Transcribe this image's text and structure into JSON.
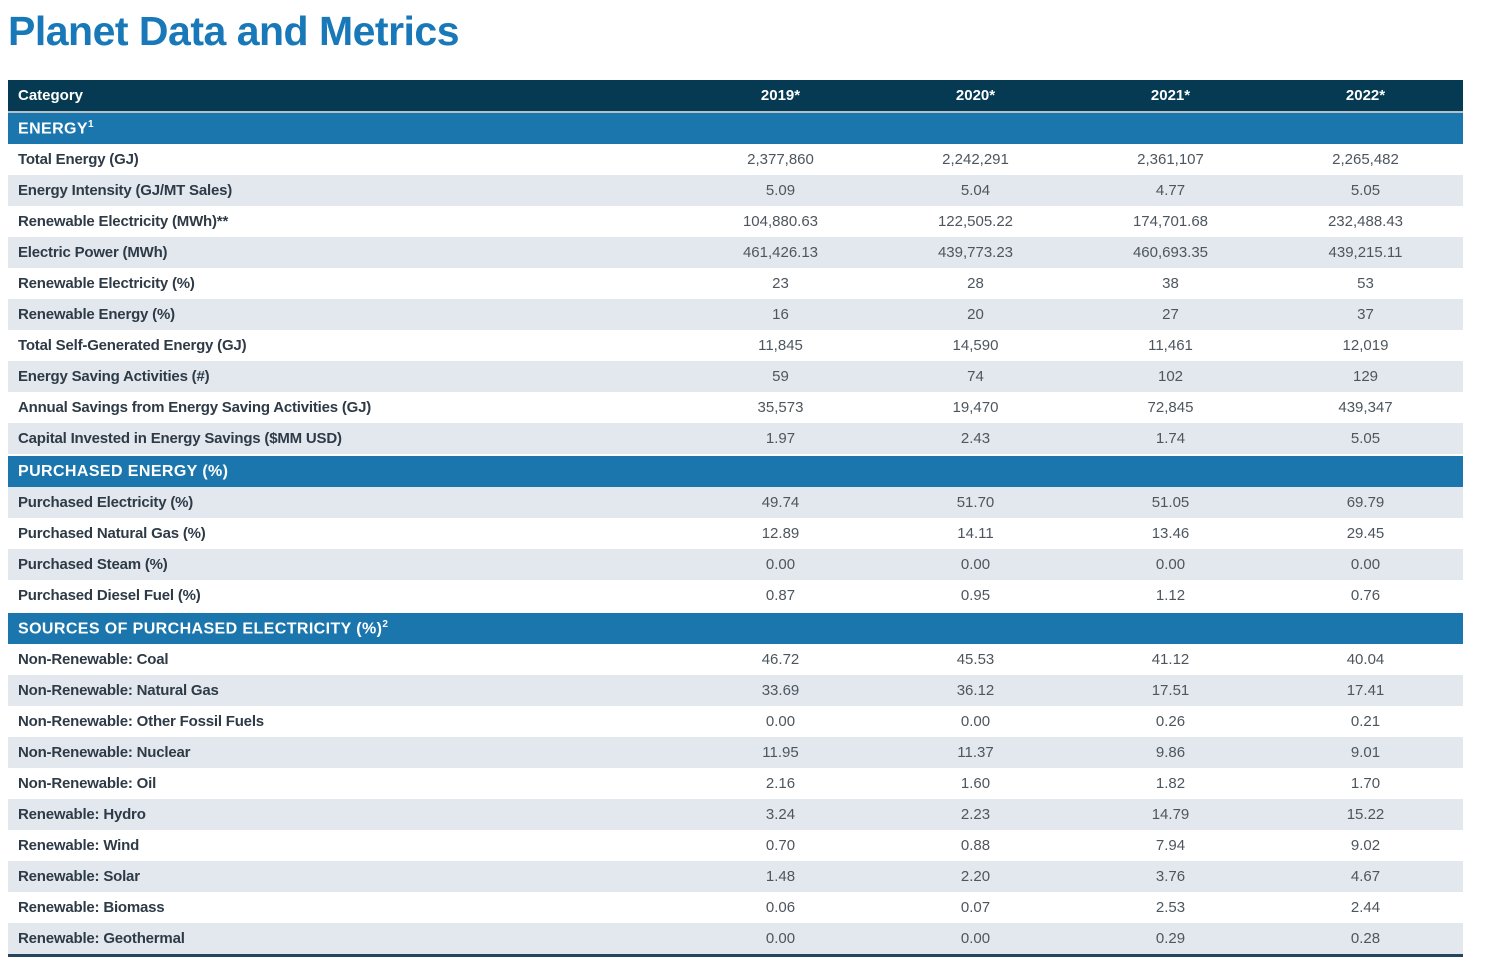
{
  "page_title": "Planet Data and Metrics",
  "colors": {
    "title_blue": "#1878b8",
    "header_navy": "#063a52",
    "section_blue": "#1b76ae",
    "stripe_gray": "#e3e7ee",
    "label_text": "#2e3b47",
    "value_text": "#4d565e",
    "bottom_border": "#27465c"
  },
  "table": {
    "header": {
      "category": "Category",
      "years": [
        "2019*",
        "2020*",
        "2021*",
        "2022*"
      ]
    },
    "sections": [
      {
        "title": "ENERGY",
        "sup": "1",
        "rows": [
          {
            "label": "Total Energy (GJ)",
            "values": [
              "2,377,860",
              "2,242,291",
              "2,361,107",
              "2,265,482"
            ]
          },
          {
            "label": "Energy Intensity (GJ/MT Sales)",
            "values": [
              "5.09",
              "5.04",
              "4.77",
              "5.05"
            ]
          },
          {
            "label": "Renewable Electricity (MWh)**",
            "values": [
              "104,880.63",
              "122,505.22",
              "174,701.68",
              "232,488.43"
            ]
          },
          {
            "label": "Electric Power (MWh)",
            "values": [
              "461,426.13",
              "439,773.23",
              "460,693.35",
              "439,215.11"
            ]
          },
          {
            "label": "Renewable Electricity (%)",
            "values": [
              "23",
              "28",
              "38",
              "53"
            ]
          },
          {
            "label": "Renewable Energy (%)",
            "values": [
              "16",
              "20",
              "27",
              "37"
            ]
          },
          {
            "label": "Total Self-Generated Energy (GJ)",
            "values": [
              "11,845",
              "14,590",
              "11,461",
              "12,019"
            ]
          },
          {
            "label": "Energy Saving Activities (#)",
            "values": [
              "59",
              "74",
              "102",
              "129"
            ]
          },
          {
            "label": "Annual Savings from Energy Saving Activities (GJ)",
            "values": [
              "35,573",
              "19,470",
              "72,845",
              "439,347"
            ]
          },
          {
            "label": "Capital Invested in Energy Savings ($MM USD)",
            "values": [
              "1.97",
              "2.43",
              "1.74",
              "5.05"
            ]
          }
        ]
      },
      {
        "title": "PURCHASED ENERGY (%)",
        "sup": "",
        "rows": [
          {
            "label": "Purchased Electricity (%)",
            "values": [
              "49.74",
              "51.70",
              "51.05",
              "69.79"
            ]
          },
          {
            "label": "Purchased Natural Gas (%)",
            "values": [
              "12.89",
              "14.11",
              "13.46",
              "29.45"
            ]
          },
          {
            "label": "Purchased Steam (%)",
            "values": [
              "0.00",
              "0.00",
              "0.00",
              "0.00"
            ]
          },
          {
            "label": "Purchased Diesel Fuel (%)",
            "values": [
              "0.87",
              "0.95",
              "1.12",
              "0.76"
            ]
          }
        ]
      },
      {
        "title": "SOURCES OF PURCHASED ELECTRICITY (%)",
        "sup": "2",
        "rows": [
          {
            "label": "Non-Renewable: Coal",
            "values": [
              "46.72",
              "45.53",
              "41.12",
              "40.04"
            ]
          },
          {
            "label": "Non-Renewable: Natural Gas",
            "values": [
              "33.69",
              "36.12",
              "17.51",
              "17.41"
            ]
          },
          {
            "label": "Non-Renewable: Other Fossil Fuels",
            "values": [
              "0.00",
              "0.00",
              "0.26",
              "0.21"
            ]
          },
          {
            "label": "Non-Renewable: Nuclear",
            "values": [
              "11.95",
              "11.37",
              "9.86",
              "9.01"
            ]
          },
          {
            "label": "Non-Renewable: Oil",
            "values": [
              "2.16",
              "1.60",
              "1.82",
              "1.70"
            ]
          },
          {
            "label": "Renewable: Hydro",
            "values": [
              "3.24",
              "2.23",
              "14.79",
              "15.22"
            ]
          },
          {
            "label": "Renewable: Wind",
            "values": [
              "0.70",
              "0.88",
              "7.94",
              "9.02"
            ]
          },
          {
            "label": "Renewable: Solar",
            "values": [
              "1.48",
              "2.20",
              "3.76",
              "4.67"
            ]
          },
          {
            "label": "Renewable: Biomass",
            "values": [
              "0.06",
              "0.07",
              "2.53",
              "2.44"
            ]
          },
          {
            "label": "Renewable: Geothermal",
            "values": [
              "0.00",
              "0.00",
              "0.29",
              "0.28"
            ]
          }
        ]
      }
    ]
  }
}
